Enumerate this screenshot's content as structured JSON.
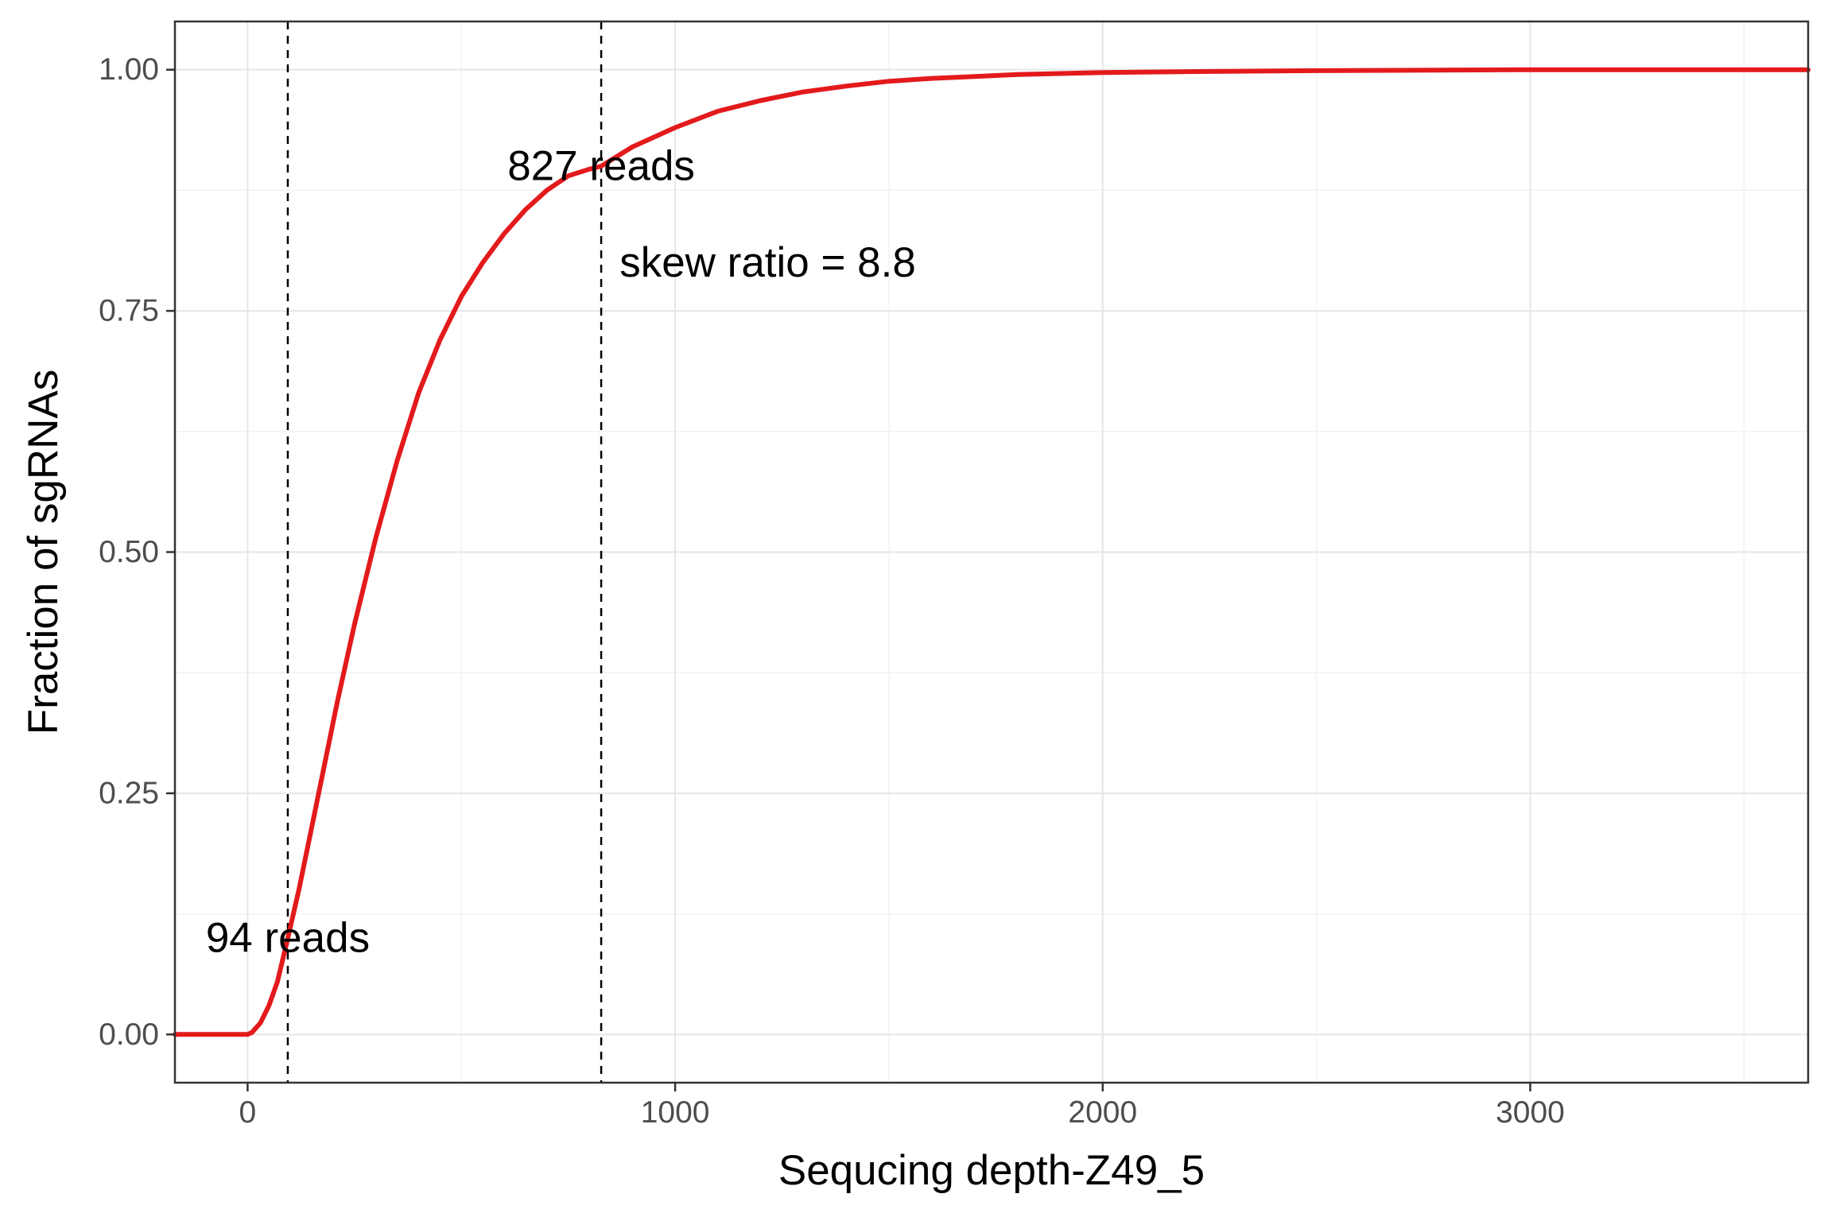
{
  "chart_data": {
    "type": "line",
    "title": "",
    "xlabel": "Sequcing depth-Z49_5",
    "ylabel": "Fraction of sgRNAs",
    "xlim": [
      -170,
      3650
    ],
    "ylim": [
      -0.05,
      1.05
    ],
    "x_ticks": [
      0,
      1000,
      2000,
      3000
    ],
    "x_tick_labels": [
      "0",
      "1000",
      "2000",
      "3000"
    ],
    "y_ticks": [
      0,
      0.25,
      0.5,
      0.75,
      1.0
    ],
    "y_tick_labels": [
      "0.00",
      "0.25",
      "0.50",
      "0.75",
      "1.00"
    ],
    "grid": true,
    "legend": "none",
    "series": [
      {
        "color": "#e31a1c",
        "x": [
          -170,
          0,
          10,
          30,
          50,
          70,
          94,
          120,
          150,
          180,
          210,
          250,
          300,
          350,
          400,
          450,
          500,
          550,
          600,
          650,
          700,
          750,
          800,
          827,
          900,
          1000,
          1100,
          1200,
          1300,
          1400,
          1500,
          1600,
          1700,
          1800,
          2000,
          2200,
          2500,
          3000,
          3650
        ],
        "y": [
          0,
          0,
          0.002,
          0.012,
          0.03,
          0.055,
          0.1,
          0.15,
          0.215,
          0.28,
          0.345,
          0.425,
          0.515,
          0.595,
          0.665,
          0.72,
          0.765,
          0.8,
          0.83,
          0.855,
          0.875,
          0.89,
          0.897,
          0.9,
          0.92,
          0.94,
          0.957,
          0.968,
          0.977,
          0.983,
          0.988,
          0.991,
          0.993,
          0.995,
          0.997,
          0.998,
          0.999,
          1.0,
          1.0
        ]
      }
    ],
    "vlines": [
      94,
      827
    ],
    "annotations": [
      {
        "text": "94 reads",
        "x": 94,
        "y": 0.1
      },
      {
        "text": "827 reads",
        "x": 827,
        "y": 0.9
      },
      {
        "text": "skew ratio = 8.8",
        "x": 870,
        "y": 0.8
      }
    ]
  }
}
